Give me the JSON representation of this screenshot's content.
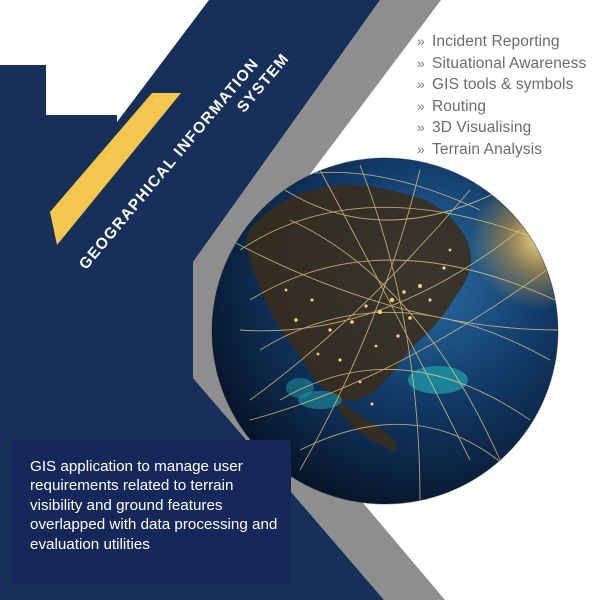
{
  "title": {
    "line1": "GEOGRAPHICAL INFORMATION",
    "line2": "SYSTEM"
  },
  "features": {
    "bullet": "»",
    "items": [
      "Incident Reporting",
      "Situational Awareness",
      "GIS tools & symbols",
      "Routing",
      "3D Visualising",
      "Terrain Analysis"
    ]
  },
  "description": "GIS application to manage user requirements related to terrain visibility and ground features overlapped with data processing and evaluation utilities",
  "colors": {
    "navy": "#16305a",
    "grey_band": "#8e8e8e",
    "yellow": "#f3c74d",
    "box": "#16285a"
  }
}
